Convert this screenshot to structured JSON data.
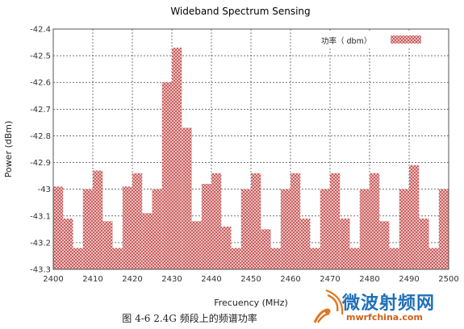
{
  "chart_data": {
    "type": "bar",
    "title": "Wideband Spectrum Sensing",
    "xlabel": "Frecuency (MHz)",
    "ylabel": "Power (dBm)",
    "xlim": [
      2400,
      2500
    ],
    "ylim": [
      -43.3,
      -42.4
    ],
    "xticks": [
      "2400",
      "2410",
      "2420",
      "2430",
      "2440",
      "2450",
      "2460",
      "2470",
      "2480",
      "2490",
      "2500"
    ],
    "yticks": [
      "-42.4",
      "-42.5",
      "-42.6",
      "-42.7",
      "-42.8",
      "-42.9",
      "-43",
      "-43.1",
      "-43.2",
      "-43.3"
    ],
    "grid": true,
    "legend_position": "top-right",
    "bar_width_mhz": 2.5,
    "series": [
      {
        "name": "功率（ dbm）",
        "color": "#c84a4a",
        "x": [
          2400,
          2402.5,
          2405,
          2407.5,
          2410,
          2412.5,
          2415,
          2417.5,
          2420,
          2422.5,
          2425,
          2427.5,
          2430,
          2432.5,
          2435,
          2437.5,
          2440,
          2442.5,
          2445,
          2447.5,
          2450,
          2452.5,
          2455,
          2457.5,
          2460,
          2462.5,
          2465,
          2467.5,
          2470,
          2472.5,
          2475,
          2477.5,
          2480,
          2482.5,
          2485,
          2487.5,
          2490,
          2492.5,
          2495,
          2497.5
        ],
        "values": [
          -42.99,
          -43.11,
          -43.22,
          -43.0,
          -42.93,
          -43.12,
          -43.22,
          -42.99,
          -42.94,
          -43.09,
          -43.0,
          -42.6,
          -42.47,
          -42.77,
          -43.12,
          -42.98,
          -42.94,
          -43.14,
          -43.22,
          -43.0,
          -42.94,
          -43.15,
          -43.22,
          -43.0,
          -42.94,
          -43.11,
          -43.22,
          -43.0,
          -42.94,
          -43.11,
          -43.22,
          -43.0,
          -42.94,
          -43.12,
          -43.22,
          -43.0,
          -42.91,
          -43.11,
          -43.22,
          -43.0
        ]
      }
    ]
  },
  "caption": "图 4-6 2.4G 频段上的频谱功率",
  "watermark": {
    "cn": "微波射频网",
    "en": "mwrfchina.com"
  }
}
